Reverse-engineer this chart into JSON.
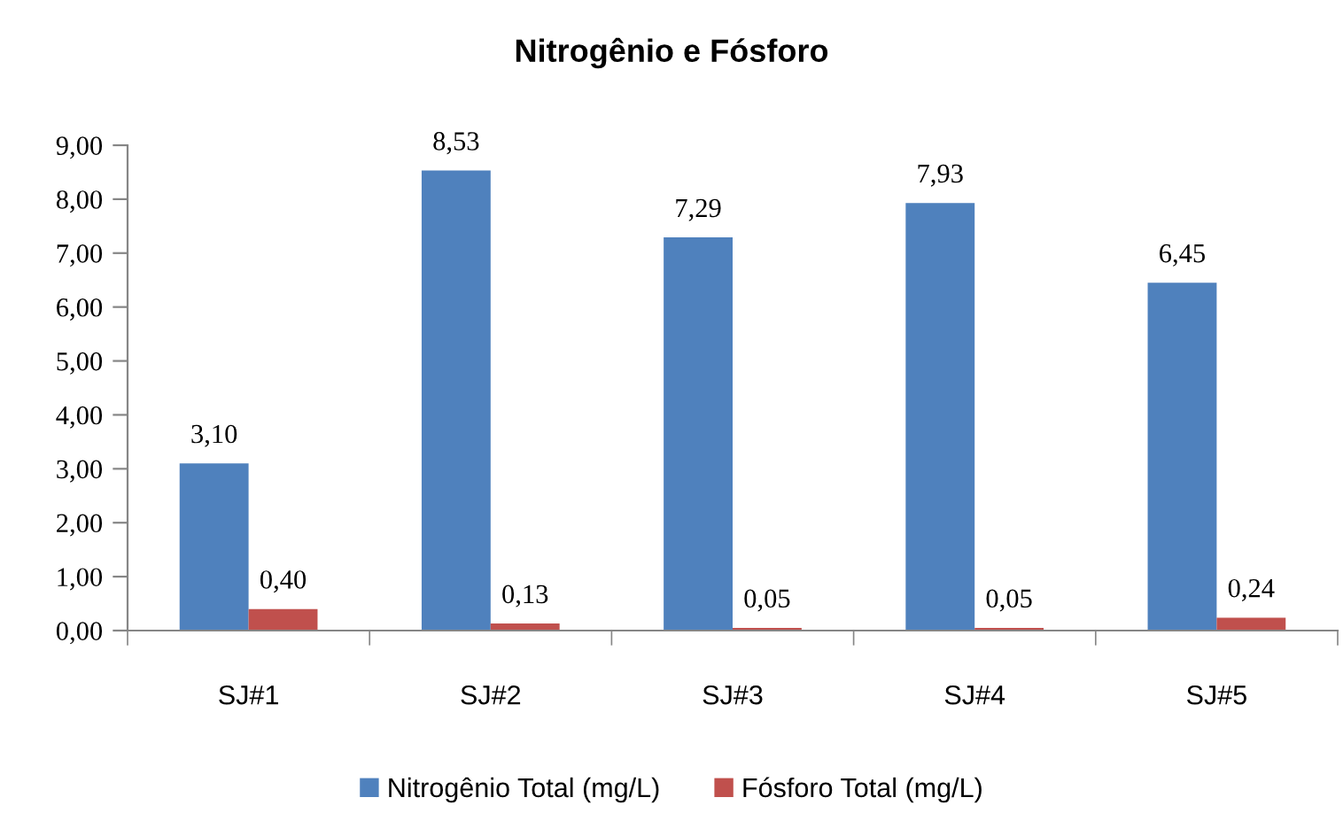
{
  "chart_data": {
    "type": "bar",
    "title": "Nitrogênio e Fósforo",
    "categories": [
      "SJ#1",
      "SJ#2",
      "SJ#3",
      "SJ#4",
      "SJ#5"
    ],
    "series": [
      {
        "name": "Nitrogênio Total (mg/L)",
        "color": "#4f81bd",
        "values": [
          3.1,
          8.53,
          7.29,
          7.93,
          6.45
        ],
        "value_labels": [
          "3,10",
          "8,53",
          "7,29",
          "7,93",
          "6,45"
        ]
      },
      {
        "name": "Fósforo Total (mg/L)",
        "color": "#c0504d",
        "values": [
          0.4,
          0.13,
          0.05,
          0.05,
          0.24
        ],
        "value_labels": [
          "0,40",
          "0,13",
          "0,05",
          "0,05",
          "0,24"
        ]
      }
    ],
    "ylim": [
      0,
      9
    ],
    "yticks": [
      {
        "value": 0,
        "label": "0,00"
      },
      {
        "value": 1,
        "label": "1,00"
      },
      {
        "value": 2,
        "label": "2,00"
      },
      {
        "value": 3,
        "label": "3,00"
      },
      {
        "value": 4,
        "label": "4,00"
      },
      {
        "value": 5,
        "label": "5,00"
      },
      {
        "value": 6,
        "label": "6,00"
      },
      {
        "value": 7,
        "label": "7,00"
      },
      {
        "value": 8,
        "label": "8,00"
      },
      {
        "value": 9,
        "label": "9,00"
      }
    ],
    "grid": false,
    "legend": "bottom"
  }
}
